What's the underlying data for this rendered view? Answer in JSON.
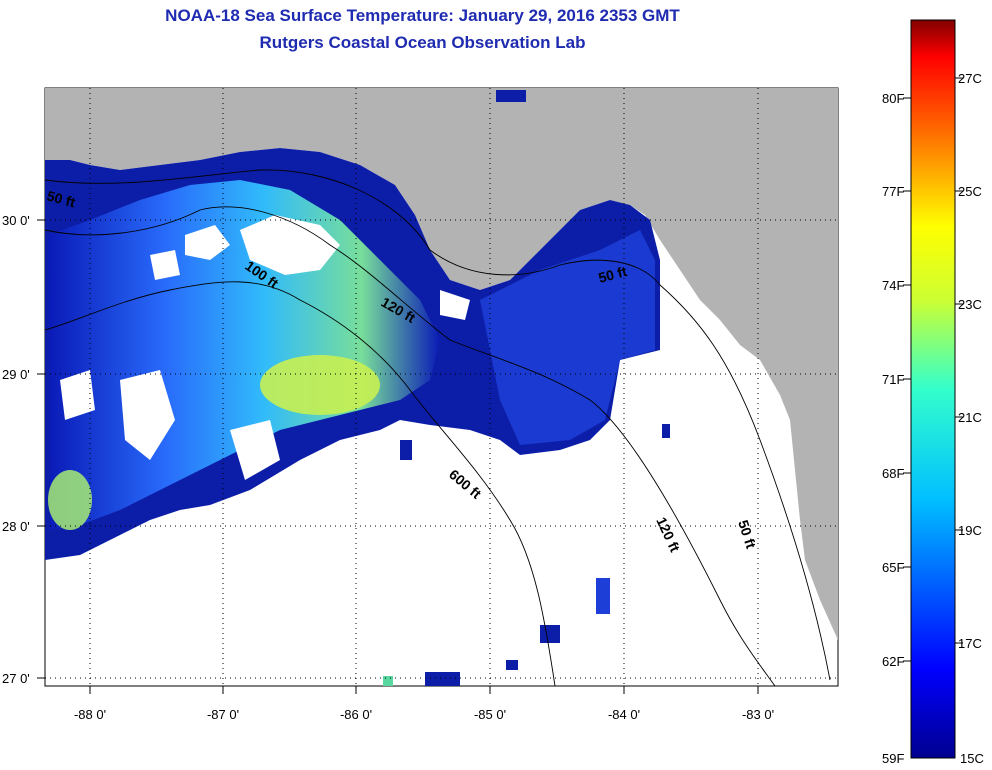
{
  "title": "NOAA-18 Sea Surface Temperature:  January 29, 2016 2353 GMT",
  "subtitle": "Rutgers Coastal Ocean Observation Lab",
  "map": {
    "lon_ticks": [
      "-88 0'",
      "-87 0'",
      "-86 0'",
      "-85 0'",
      "-84 0'",
      "-83 0'"
    ],
    "lat_ticks": [
      "30 0'",
      "29 0'",
      "28 0'",
      "27 0'"
    ],
    "depth_contours": [
      "50 ft",
      "100 ft",
      "120 ft",
      "50 ft",
      "600 ft",
      "120 ft",
      "50 ft"
    ],
    "colors": {
      "land": "#b3b3b3",
      "no_data": "#ffffff",
      "cold": "#00008f",
      "warm": "#d4f53a"
    }
  },
  "colorbar": {
    "fahrenheit_labels": [
      "80F",
      "77F",
      "74F",
      "71F",
      "68F",
      "65F",
      "62F",
      "59F"
    ],
    "celsius_labels": [
      "27C",
      "25C",
      "23C",
      "21C",
      "19C",
      "17C",
      "15C"
    ]
  }
}
